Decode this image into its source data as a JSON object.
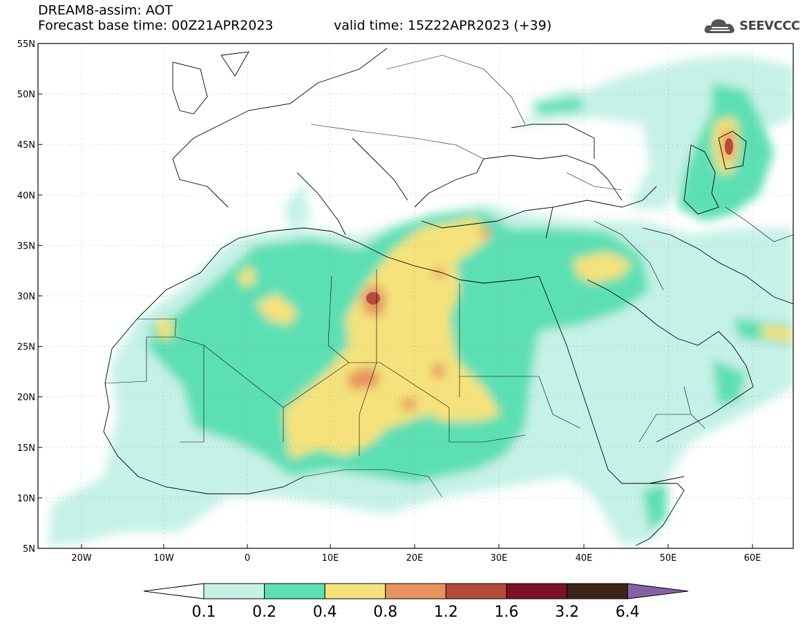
{
  "title": {
    "line1": "DREAM8-assim: AOT",
    "base_time": "Forecast base time: 00Z21APR2023",
    "valid_time": "valid time: 15Z22APR2023 (+39)"
  },
  "logo": {
    "text": "SEEVCCC",
    "icon": "cloud-icon"
  },
  "map": {
    "lat_labels": [
      "55N",
      "50N",
      "45N",
      "40N",
      "35N",
      "30N",
      "25N",
      "20N",
      "15N",
      "10N",
      "5N"
    ],
    "lon_labels": [
      "20W",
      "10W",
      "0",
      "10E",
      "20E",
      "30E",
      "40E",
      "50E",
      "60E"
    ]
  },
  "colorbar": {
    "levels": [
      "0.1",
      "0.2",
      "0.4",
      "0.8",
      "1.2",
      "1.6",
      "3.2",
      "6.4"
    ],
    "colors": [
      "#c6f1e8",
      "#5ddfb4",
      "#f5e27c",
      "#e8935f",
      "#b54b3b",
      "#7b1225",
      "#3c2418",
      "#8462a8"
    ]
  }
}
